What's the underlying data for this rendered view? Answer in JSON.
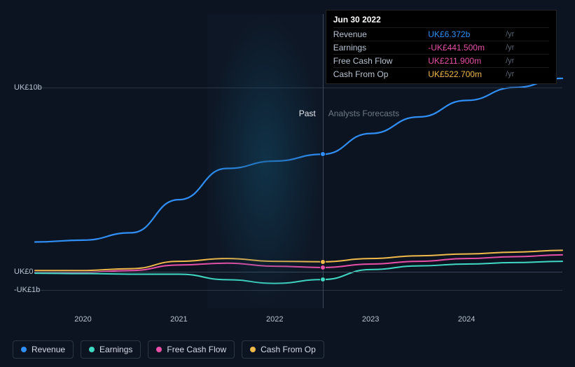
{
  "chart": {
    "type": "line",
    "background_color": "#0d1421",
    "grid_color": "#2a3544",
    "text_color": "#b8c4d3",
    "x": {
      "min": 2019.5,
      "max": 2025.0,
      "ticks": [
        2020,
        2021,
        2022,
        2023,
        2024
      ],
      "tick_labels": [
        "2020",
        "2021",
        "2022",
        "2023",
        "2024"
      ]
    },
    "y": {
      "min": -2.0,
      "max": 14.0,
      "gridlines": [
        -1,
        0,
        10
      ],
      "labels": [
        "-UK£1b",
        "UK£0",
        "UK£10b"
      ]
    },
    "past_forecast_split_x": 2022.5,
    "past_label": "Past",
    "forecast_label": "Analysts Forecasts",
    "glow_band": {
      "x_start": 2021.3,
      "x_end": 2022.5
    },
    "series": [
      {
        "key": "revenue",
        "label": "Revenue",
        "color": "#2f8ff7",
        "width": 2.2,
        "points": [
          [
            2019.5,
            1.6
          ],
          [
            2020.0,
            1.7
          ],
          [
            2020.5,
            2.1
          ],
          [
            2021.0,
            3.9
          ],
          [
            2021.5,
            5.6
          ],
          [
            2022.0,
            6.0
          ],
          [
            2022.5,
            6.372
          ],
          [
            2023.0,
            7.5
          ],
          [
            2023.5,
            8.4
          ],
          [
            2024.0,
            9.3
          ],
          [
            2024.5,
            10.0
          ],
          [
            2025.0,
            10.5
          ]
        ]
      },
      {
        "key": "cash_from_op",
        "label": "Cash From Op",
        "color": "#f0b94a",
        "width": 2,
        "points": [
          [
            2019.5,
            0.05
          ],
          [
            2020.0,
            0.05
          ],
          [
            2020.5,
            0.15
          ],
          [
            2021.0,
            0.55
          ],
          [
            2021.5,
            0.7
          ],
          [
            2022.0,
            0.55
          ],
          [
            2022.5,
            0.5227
          ],
          [
            2023.0,
            0.7
          ],
          [
            2023.5,
            0.85
          ],
          [
            2024.0,
            0.95
          ],
          [
            2024.5,
            1.05
          ],
          [
            2025.0,
            1.15
          ]
        ]
      },
      {
        "key": "free_cash_flow",
        "label": "Free Cash Flow",
        "color": "#e84fa8",
        "width": 2,
        "points": [
          [
            2019.5,
            -0.05
          ],
          [
            2020.0,
            -0.05
          ],
          [
            2020.5,
            0.05
          ],
          [
            2021.0,
            0.35
          ],
          [
            2021.5,
            0.45
          ],
          [
            2022.0,
            0.28
          ],
          [
            2022.5,
            0.2119
          ],
          [
            2023.0,
            0.4
          ],
          [
            2023.5,
            0.55
          ],
          [
            2024.0,
            0.7
          ],
          [
            2024.5,
            0.8
          ],
          [
            2025.0,
            0.9
          ]
        ]
      },
      {
        "key": "earnings",
        "label": "Earnings",
        "color": "#3fd9c4",
        "width": 2,
        "points": [
          [
            2019.5,
            -0.1
          ],
          [
            2020.0,
            -0.12
          ],
          [
            2020.5,
            -0.15
          ],
          [
            2021.0,
            -0.15
          ],
          [
            2021.5,
            -0.45
          ],
          [
            2022.0,
            -0.65
          ],
          [
            2022.5,
            -0.4415
          ],
          [
            2023.0,
            0.1
          ],
          [
            2023.5,
            0.3
          ],
          [
            2024.0,
            0.4
          ],
          [
            2024.5,
            0.48
          ],
          [
            2025.0,
            0.55
          ]
        ]
      }
    ],
    "tooltip": {
      "x": 2022.5,
      "date": "Jun 30 2022",
      "unit": "/yr",
      "rows": [
        {
          "label": "Revenue",
          "value": "UK£6.372b",
          "color": "#2f8ff7"
        },
        {
          "label": "Earnings",
          "value": "-UK£441.500m",
          "color": "#e84fa8"
        },
        {
          "label": "Free Cash Flow",
          "value": "UK£211.900m",
          "color": "#e84fa8"
        },
        {
          "label": "Cash From Op",
          "value": "UK£522.700m",
          "color": "#f0b94a"
        }
      ]
    },
    "legend": [
      {
        "key": "revenue",
        "label": "Revenue",
        "color": "#2f8ff7"
      },
      {
        "key": "earnings",
        "label": "Earnings",
        "color": "#3fd9c4"
      },
      {
        "key": "free_cash_flow",
        "label": "Free Cash Flow",
        "color": "#e84fa8"
      },
      {
        "key": "cash_from_op",
        "label": "Cash From Op",
        "color": "#f0b94a"
      }
    ]
  }
}
